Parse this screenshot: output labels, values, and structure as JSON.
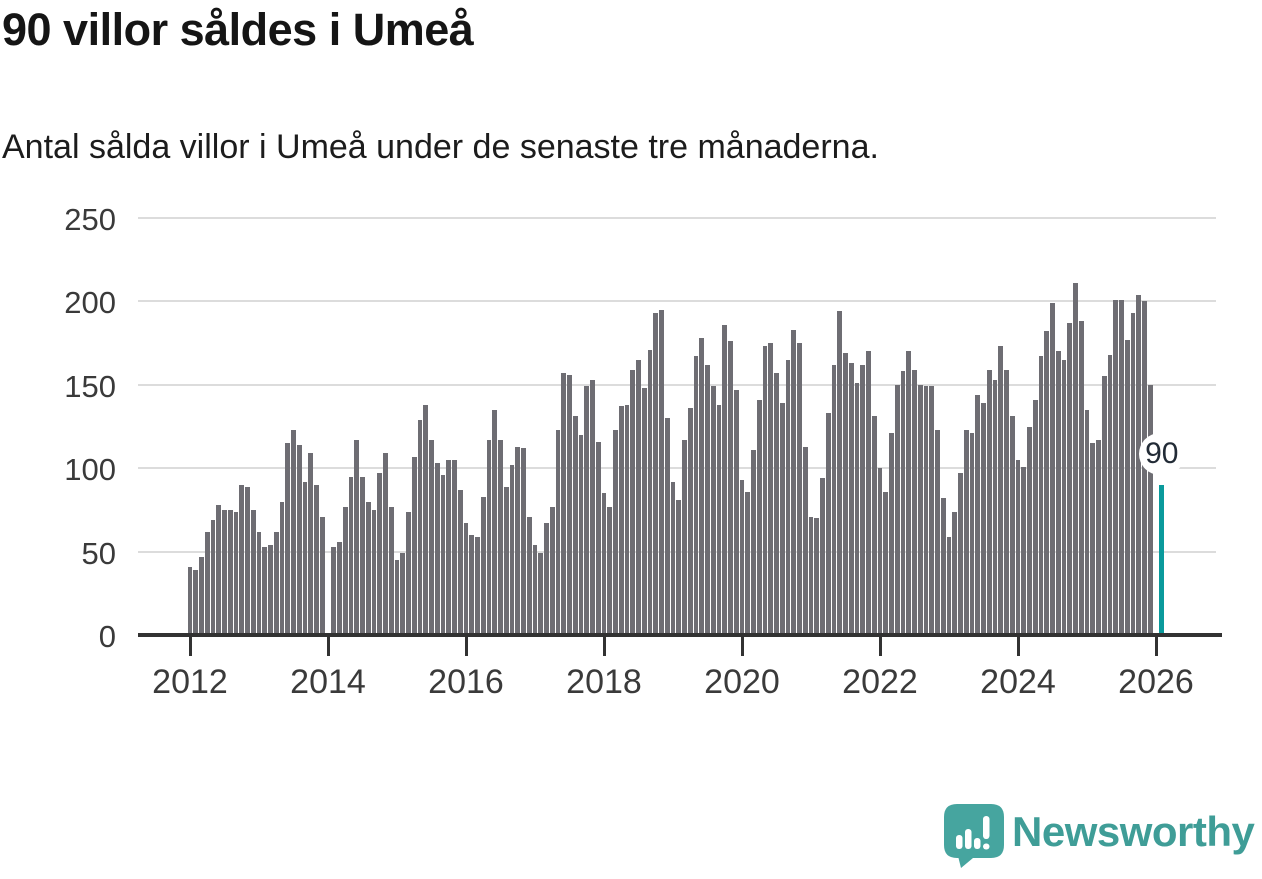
{
  "title": "90 villor såldes i Umeå",
  "subtitle": "Antal sålda villor i Umeå under de senaste tre månaderna.",
  "chart_data": {
    "type": "bar",
    "title": "90 villor såldes i Umeå",
    "xlabel": "",
    "ylabel": "",
    "ylim": [
      0,
      250
    ],
    "grid": true,
    "y_ticks": [
      0,
      50,
      100,
      150,
      200,
      250
    ],
    "x_ticks": [
      "2012",
      "2014",
      "2016",
      "2018",
      "2020",
      "2022",
      "2024",
      "2026"
    ],
    "start_month": "2012-01",
    "series": [
      {
        "year": 2012,
        "values": [
          41,
          39,
          47,
          62,
          69,
          78,
          75,
          75,
          74,
          90,
          89,
          75
        ]
      },
      {
        "year": 2013,
        "values": [
          62,
          53,
          54,
          62,
          80,
          115,
          123,
          114,
          92,
          109,
          90,
          71
        ]
      },
      {
        "year": 2014,
        "values": [
          null,
          53,
          56,
          77,
          95,
          117,
          95,
          80,
          75,
          97,
          109,
          77
        ]
      },
      {
        "year": 2015,
        "values": [
          45,
          49,
          74,
          107,
          129,
          138,
          117,
          103,
          96,
          105,
          105,
          87
        ]
      },
      {
        "year": 2016,
        "values": [
          67,
          60,
          59,
          83,
          117,
          135,
          117,
          89,
          102,
          113,
          112,
          71
        ]
      },
      {
        "year": 2017,
        "values": [
          54,
          49,
          67,
          77,
          123,
          157,
          156,
          131,
          120,
          149,
          153,
          116
        ]
      },
      {
        "year": 2018,
        "values": [
          85,
          77,
          123,
          137,
          138,
          159,
          165,
          148,
          171,
          193,
          195,
          130
        ]
      },
      {
        "year": 2019,
        "values": [
          92,
          81,
          117,
          136,
          167,
          178,
          162,
          149,
          138,
          186,
          176,
          147
        ]
      },
      {
        "year": 2020,
        "values": [
          93,
          86,
          111,
          141,
          173,
          175,
          157,
          139,
          165,
          183,
          175,
          113
        ]
      },
      {
        "year": 2021,
        "values": [
          71,
          70,
          94,
          133,
          162,
          194,
          169,
          163,
          151,
          162,
          170,
          131
        ]
      },
      {
        "year": 2022,
        "values": [
          100,
          86,
          121,
          150,
          158,
          170,
          159,
          150,
          149,
          149,
          123,
          82
        ]
      },
      {
        "year": 2023,
        "values": [
          59,
          74,
          97,
          123,
          121,
          144,
          139,
          159,
          153,
          173,
          159,
          131
        ]
      },
      {
        "year": 2024,
        "values": [
          105,
          101,
          125,
          141,
          167,
          182,
          199,
          170,
          165,
          187,
          211,
          188
        ]
      },
      {
        "year": 2025,
        "values": [
          135,
          115,
          117,
          155,
          168,
          201,
          201,
          177,
          193,
          204,
          200,
          150
        ]
      },
      {
        "year": 2026,
        "values": [
          null,
          90
        ]
      }
    ],
    "highlight": {
      "label": "90",
      "value": 90
    }
  },
  "colors": {
    "bar": "#6e6d73",
    "highlight": "#0a9a9c",
    "gridline": "#dcdcdc",
    "axis": "#323232",
    "logo_teal": "#46a59f"
  },
  "logo": {
    "text": "Newsworthy"
  }
}
